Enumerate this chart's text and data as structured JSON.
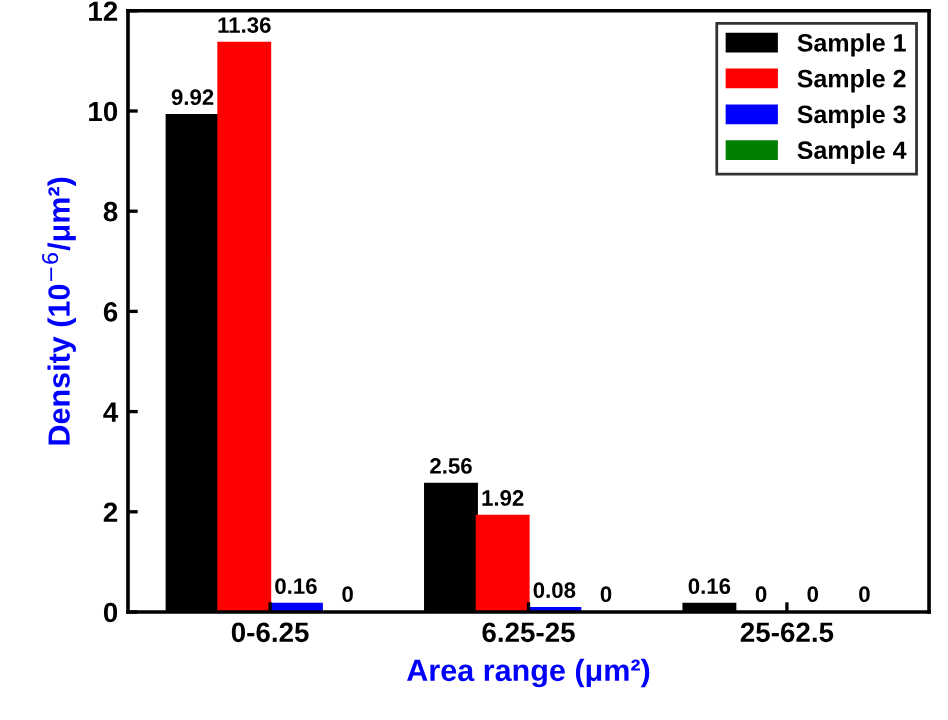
{
  "chart_data": {
    "type": "bar",
    "xlabel": "Area range (μm²)",
    "ylabel": "Density (10$^{−6}$/μm²)",
    "categories": [
      "0-6.25",
      "6.25-25",
      "25-62.5"
    ],
    "series": [
      {
        "name": "Sample 1",
        "color": "#000000",
        "values": [
          9.92,
          2.56,
          0.16
        ]
      },
      {
        "name": "Sample 2",
        "color": "#ff0000",
        "values": [
          11.36,
          1.92,
          0
        ]
      },
      {
        "name": "Sample 3",
        "color": "#0000ff",
        "values": [
          0.16,
          0.08,
          0
        ]
      },
      {
        "name": "Sample 4",
        "color": "#008000",
        "values": [
          0,
          0,
          0
        ]
      }
    ],
    "ylim": [
      0,
      12
    ],
    "yticks": [
      0,
      2,
      4,
      6,
      8,
      10,
      12
    ],
    "data_labels": true,
    "legend": "top right",
    "grid": false
  }
}
